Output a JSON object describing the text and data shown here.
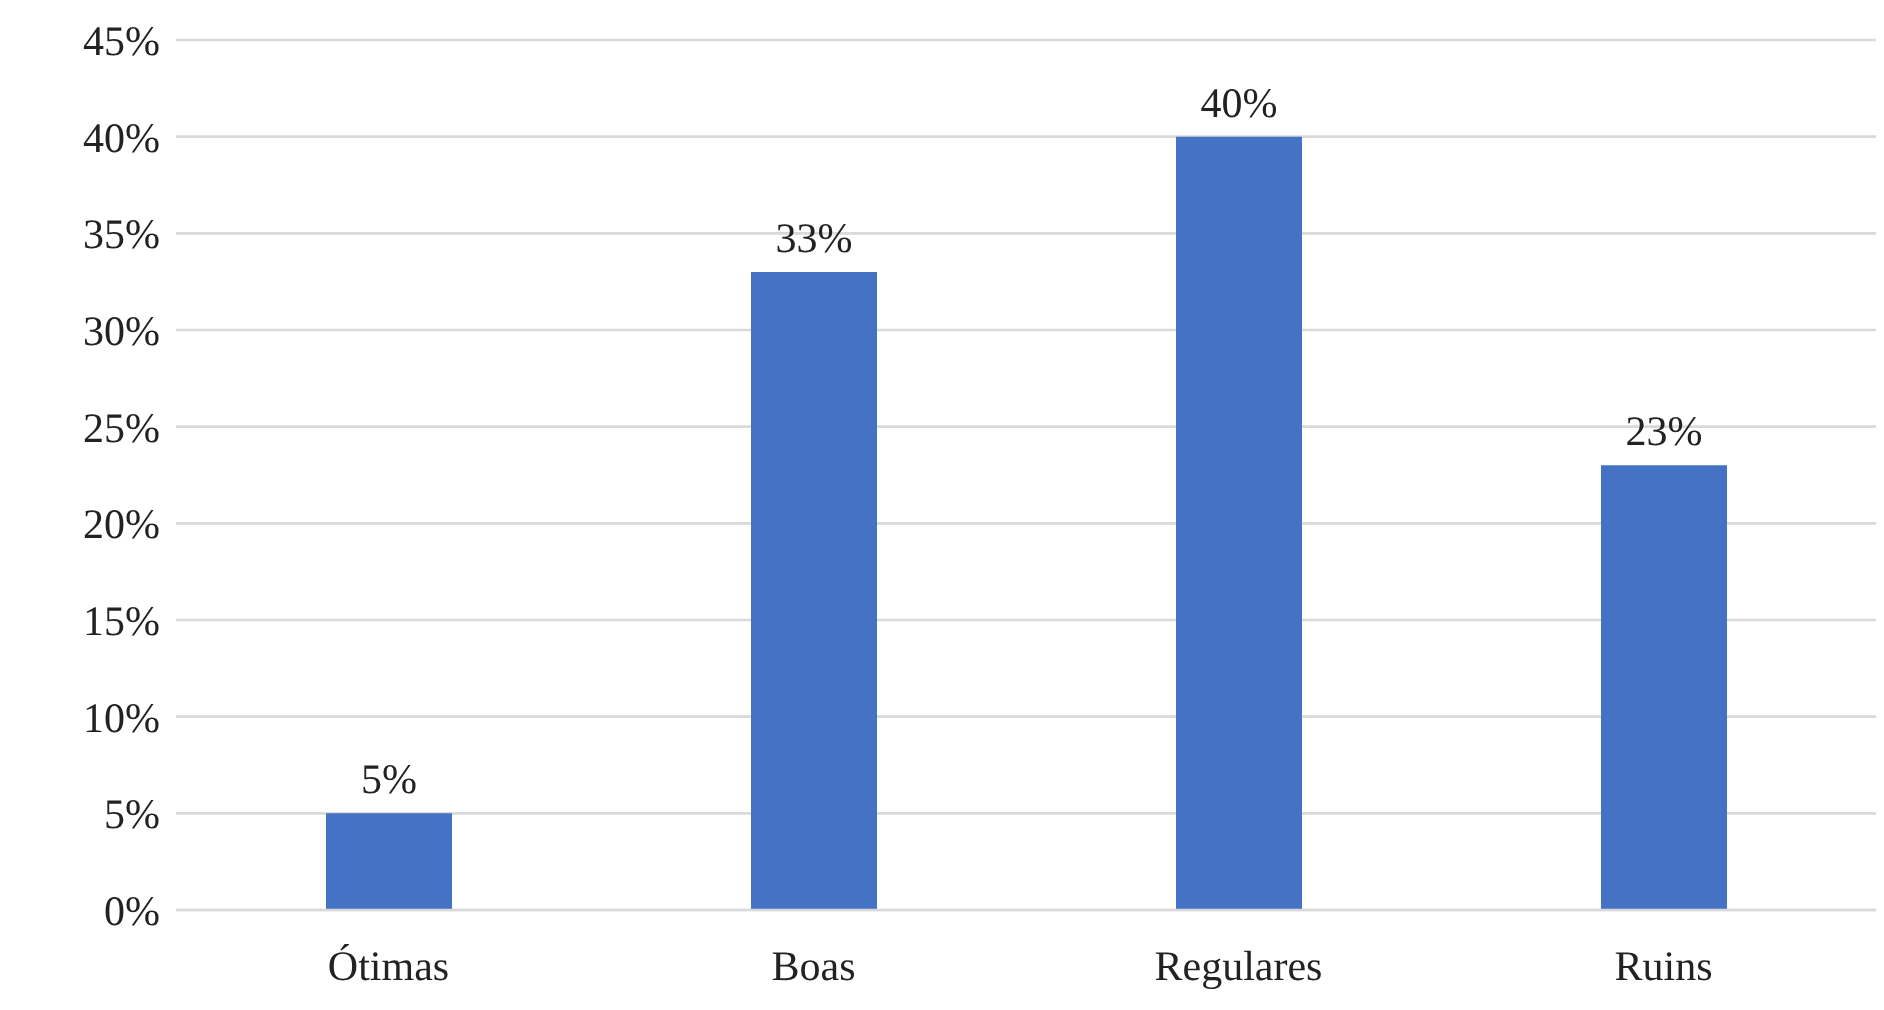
{
  "chart_data": {
    "type": "bar",
    "categories": [
      "Ótimas",
      "Boas",
      "Regulares",
      "Ruins"
    ],
    "values": [
      5,
      33,
      40,
      23
    ],
    "value_labels": [
      "5%",
      "33%",
      "40%",
      "23%"
    ],
    "color": "#4472c4",
    "ylim": [
      0,
      45
    ],
    "yticks": [
      {
        "value": 0,
        "label": "0%"
      },
      {
        "value": 5,
        "label": "5%"
      },
      {
        "value": 10,
        "label": "10%"
      },
      {
        "value": 15,
        "label": "15%"
      },
      {
        "value": 20,
        "label": "20%"
      },
      {
        "value": 25,
        "label": "25%"
      },
      {
        "value": 30,
        "label": "30%"
      },
      {
        "value": 35,
        "label": "35%"
      },
      {
        "value": 40,
        "label": "40%"
      },
      {
        "value": 45,
        "label": "45%"
      }
    ],
    "grid": "y"
  }
}
